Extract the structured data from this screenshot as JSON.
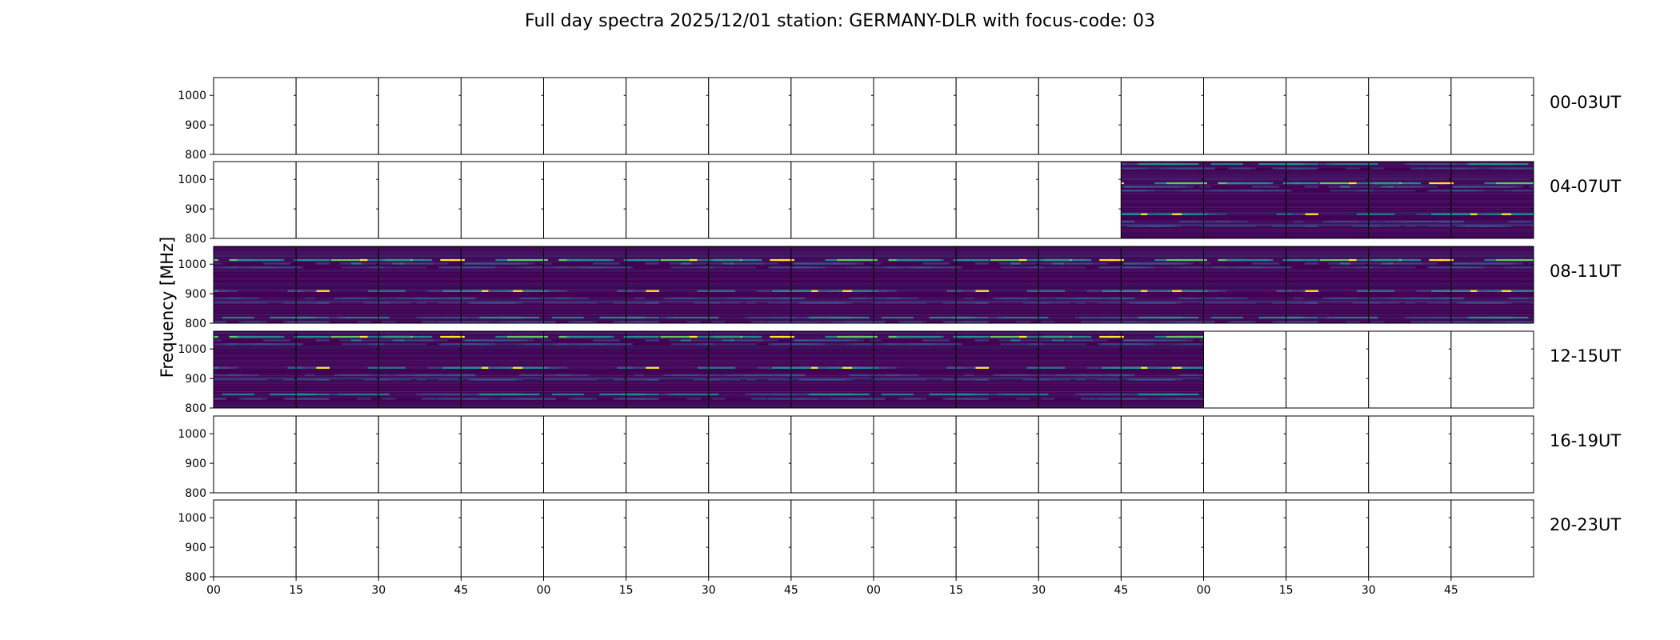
{
  "chart_data": {
    "type": "heatmap",
    "title": "Full day spectra 2025/12/01 station: GERMANY-DLR with focus-code: 03",
    "ylabel": "Frequency [MHz]",
    "ylim": [
      800,
      1060
    ],
    "y_ticks": [
      "1000",
      "900",
      "800"
    ],
    "y_tick_values": [
      1000,
      900,
      800
    ],
    "x_ticks": [
      "00",
      "15",
      "30",
      "45",
      "00",
      "15",
      "30",
      "45",
      "00",
      "15",
      "30",
      "45",
      "00",
      "15",
      "30",
      "45"
    ],
    "panels_per_row": 16,
    "panel_minutes": 15,
    "colormap": "viridis",
    "colors": {
      "background": "#440154",
      "mid": "#3b528b",
      "accent": "#21918c",
      "bright": "#5ec962",
      "peak": "#fde725"
    },
    "rows": [
      {
        "label": "00-03UT",
        "filled_panels": []
      },
      {
        "label": "04-07UT",
        "filled_panels": [
          11,
          12,
          13,
          14,
          15
        ]
      },
      {
        "label": "08-11UT",
        "filled_panels": [
          0,
          1,
          2,
          3,
          4,
          5,
          6,
          7,
          8,
          9,
          10,
          11,
          12,
          13,
          14,
          15
        ]
      },
      {
        "label": "12-15UT",
        "filled_panels": [
          0,
          1,
          2,
          3,
          4,
          5,
          6,
          7,
          8,
          9,
          10,
          11
        ]
      },
      {
        "label": "16-19UT",
        "filled_panels": []
      },
      {
        "label": "20-23UT",
        "filled_panels": []
      }
    ],
    "emission_bands_mhz": [
      {
        "freq": 1025,
        "strength": 0.55
      },
      {
        "freq": 1010,
        "strength": 0.3
      },
      {
        "freq": 960,
        "strength": 0.8
      },
      {
        "freq": 948,
        "strength": 0.45
      },
      {
        "freq": 935,
        "strength": 0.3
      },
      {
        "freq": 855,
        "strength": 0.6
      },
      {
        "freq": 830,
        "strength": 0.3
      },
      {
        "freq": 815,
        "strength": 0.25
      }
    ]
  }
}
